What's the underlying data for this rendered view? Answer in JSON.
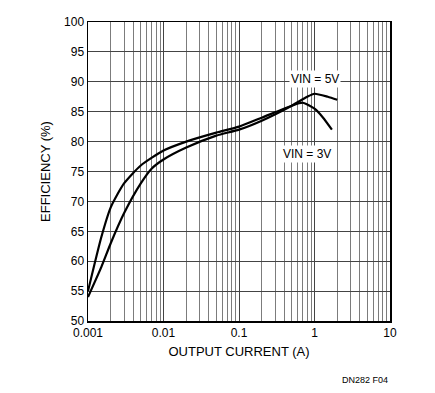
{
  "chart_data": {
    "type": "line",
    "x_label": "OUTPUT CURRENT (A)",
    "y_label": "EFFICIENCY (%)",
    "log": "x",
    "grid": true,
    "xlim": [
      0.001,
      10
    ],
    "xticks": [
      0.001,
      0.01,
      0.1,
      1,
      10
    ],
    "ylim": [
      50,
      100
    ],
    "yticks": [
      50,
      55,
      60,
      65,
      70,
      75,
      80,
      85,
      90,
      95,
      100
    ],
    "series": [
      {
        "color": "#000000",
        "x": [
          0.001,
          0.0015,
          0.002,
          0.003,
          0.005,
          0.007,
          0.01,
          0.02,
          0.05,
          0.1,
          0.2,
          0.5,
          0.8,
          1,
          1.5,
          2
        ],
        "values": [
          54,
          59,
          63,
          68,
          73,
          75.5,
          77,
          79,
          81,
          82,
          83.5,
          86,
          87.5,
          88,
          87.5,
          87
        ]
      },
      {
        "color": "#000000",
        "x": [
          0.001,
          0.0015,
          0.002,
          0.003,
          0.005,
          0.01,
          0.02,
          0.05,
          0.1,
          0.2,
          0.5,
          0.7,
          1,
          1.3,
          1.7
        ],
        "values": [
          55,
          64,
          69,
          73,
          76,
          78.5,
          80,
          81.5,
          82.5,
          84,
          86,
          86.5,
          85.5,
          84,
          82
        ]
      }
    ],
    "annotations": [
      {
        "text": "VIN = 5V",
        "x": 1,
        "y": 90.5
      },
      {
        "text": "VIN = 3V",
        "x": 0.8,
        "y": 78
      }
    ],
    "note": "DN282 F04"
  }
}
